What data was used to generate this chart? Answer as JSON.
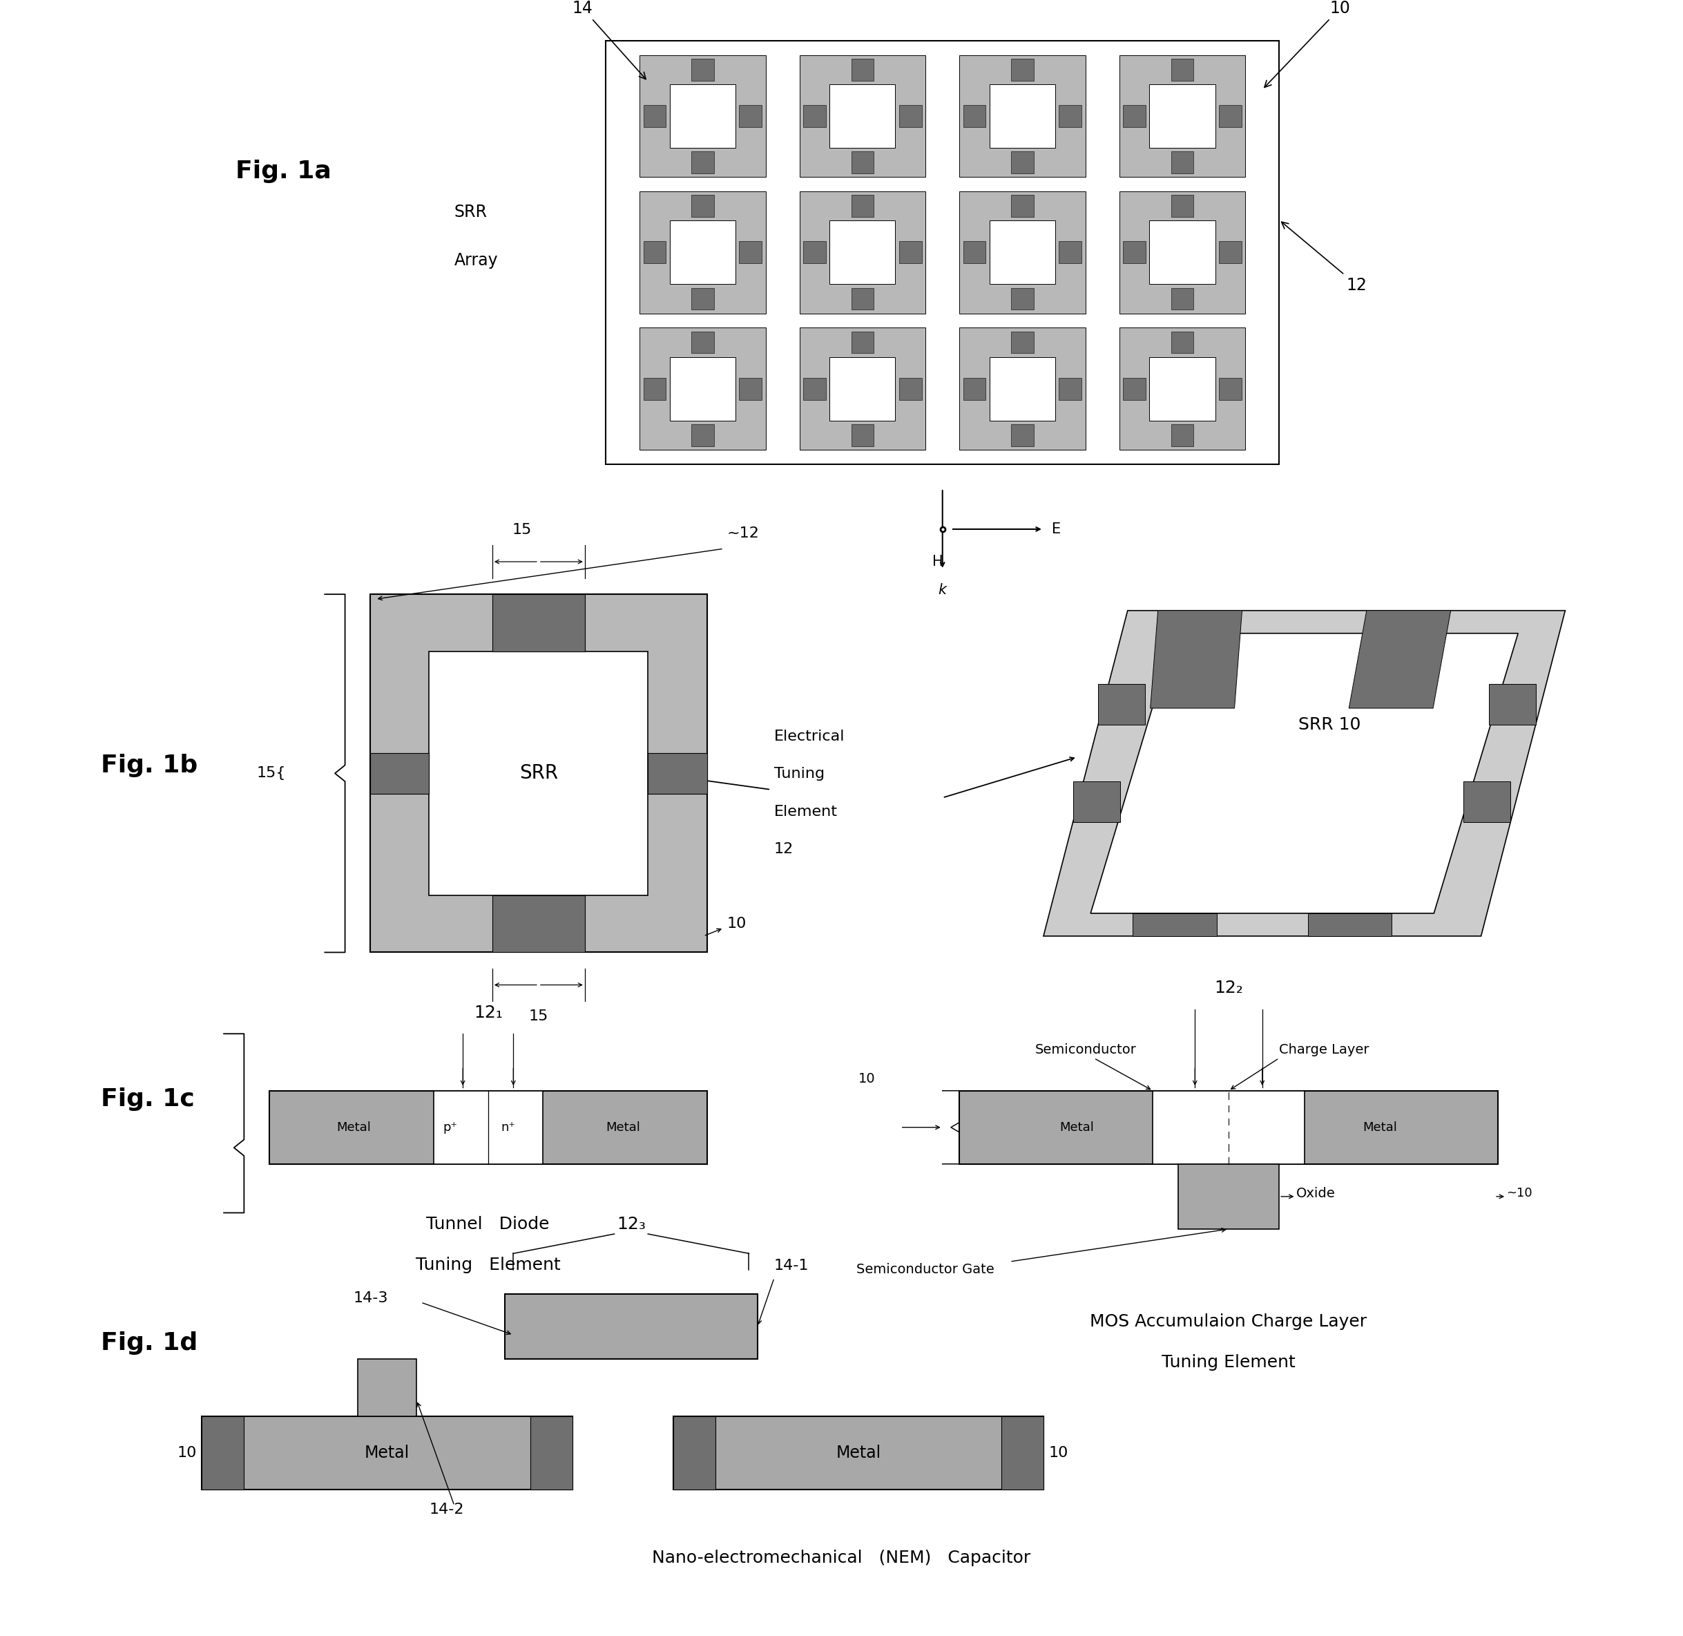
{
  "background_color": "#ffffff",
  "fig_width": 24.37,
  "fig_height": 23.68,
  "srr_gray": "#b8b8b8",
  "srr_dark": "#707070",
  "srr_light": "#cccccc",
  "metal_gray": "#a8a8a8",
  "metal_dark": "#606060",
  "oxide_gray": "#909090",
  "border_color": "#000000",
  "text_color": "#000000",
  "fig1a_label": "Fig. 1a",
  "fig1b_label": "Fig. 1b",
  "fig1c_label": "Fig. 1c",
  "fig1d_label": "Fig. 1d"
}
